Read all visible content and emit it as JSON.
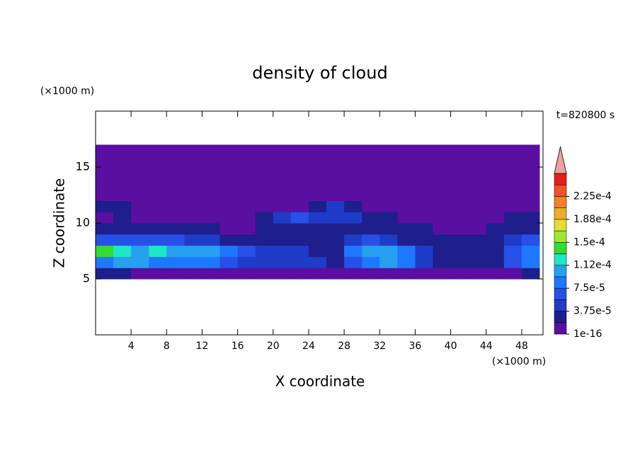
{
  "chart_data": {
    "type": "contour",
    "title": "density of cloud",
    "xlabel": "X coordinate",
    "ylabel": "Z coordinate",
    "x_unit": "(×1000 m)",
    "y_unit": "(×1000 m)",
    "time_label": "t=820800 s",
    "xlim": [
      0,
      50.4
    ],
    "ylim": [
      0,
      20
    ],
    "xticks": [
      4,
      8,
      12,
      16,
      20,
      24,
      28,
      32,
      36,
      40,
      44,
      48
    ],
    "yticks": [
      5,
      10,
      15
    ],
    "x": [
      1,
      3,
      5,
      7,
      9,
      11,
      13,
      15,
      17,
      19,
      21,
      23,
      25,
      27,
      29,
      31,
      33,
      35,
      37,
      39,
      41,
      43,
      45,
      47,
      49
    ],
    "y": [
      0.5,
      1.5,
      2.5,
      3.5,
      4.5,
      5.5,
      6.5,
      7.5,
      8.5,
      9.5,
      10.5,
      11.5,
      12.5,
      13.5,
      14.5,
      15.5,
      16.5,
      17.5,
      18.5,
      19.5
    ],
    "z": [
      [
        0,
        0,
        0,
        0,
        0,
        0,
        0,
        0,
        0,
        0,
        0,
        0,
        0,
        0,
        0,
        0,
        0,
        0,
        0,
        0,
        0,
        0,
        0,
        0,
        0
      ],
      [
        0,
        0,
        0,
        0,
        0,
        0,
        0,
        0,
        0,
        0,
        0,
        0,
        0,
        0,
        0,
        0,
        0,
        0,
        0,
        0,
        0,
        0,
        0,
        0,
        0
      ],
      [
        0,
        0,
        0,
        0,
        0,
        0,
        0,
        0,
        0,
        0,
        0,
        0,
        0,
        0,
        0,
        0,
        0,
        0,
        0,
        0,
        0,
        0,
        0,
        0,
        0
      ],
      [
        0,
        0,
        0,
        0,
        0,
        0,
        0,
        0,
        0,
        0,
        0,
        0,
        0,
        0,
        0,
        0,
        0,
        0,
        0,
        0,
        0,
        0,
        0,
        0,
        0
      ],
      [
        0,
        0,
        0,
        0,
        0,
        0,
        0,
        0,
        0,
        0,
        0,
        0,
        0,
        0,
        0,
        0,
        0,
        0,
        0,
        0,
        0,
        0,
        0,
        0,
        0
      ],
      [
        2e-05,
        2e-05,
        1e-05,
        1e-05,
        1e-05,
        1e-05,
        5e-06,
        5e-06,
        5e-06,
        5e-06,
        1e-05,
        5e-06,
        5e-06,
        5e-06,
        5e-06,
        5e-06,
        5e-06,
        5e-06,
        5e-06,
        5e-06,
        5e-06,
        5e-06,
        5e-06,
        5e-06,
        2e-05
      ],
      [
        9e-05,
        0.0001,
        0.0001,
        9e-05,
        9e-05,
        8e-05,
        8e-05,
        6e-05,
        4e-05,
        5e-05,
        4e-05,
        5e-05,
        4e-05,
        3e-05,
        6e-05,
        9e-05,
        0.0001,
        8e-05,
        4e-05,
        3e-05,
        3e-05,
        2e-05,
        2e-05,
        7e-05,
        9e-05
      ],
      [
        0.00014,
        0.00013,
        0.00011,
        0.00012,
        0.00011,
        0.00011,
        0.0001,
        8e-05,
        6e-05,
        4e-05,
        5e-05,
        4e-05,
        3e-05,
        3e-05,
        8e-05,
        0.00011,
        0.00011,
        9e-05,
        4e-05,
        2e-05,
        2e-05,
        2e-05,
        2e-05,
        6e-05,
        8e-05
      ],
      [
        6e-05,
        7e-05,
        7e-05,
        6e-05,
        7e-05,
        5e-05,
        4e-05,
        3e-05,
        2e-05,
        2e-05,
        2e-05,
        2e-05,
        2e-05,
        3e-05,
        5e-05,
        6e-05,
        5e-05,
        3e-05,
        2e-05,
        2e-05,
        2e-05,
        2e-05,
        2e-05,
        4e-05,
        6e-05
      ],
      [
        2e-05,
        2e-05,
        2e-05,
        2e-05,
        2e-05,
        2e-05,
        2e-05,
        1.5e-05,
        1.5e-05,
        2e-05,
        3e-05,
        3e-05,
        3e-05,
        2e-05,
        2e-05,
        2e-05,
        2e-05,
        2e-05,
        2e-05,
        1.5e-05,
        1.5e-05,
        1.5e-05,
        2e-05,
        3e-05,
        3e-05
      ],
      [
        1e-05,
        2e-05,
        1e-05,
        1e-05,
        1e-05,
        1e-05,
        1e-05,
        1e-05,
        1e-05,
        2e-05,
        5e-05,
        6e-05,
        5e-05,
        5e-05,
        4e-05,
        2e-05,
        2e-05,
        1e-05,
        1e-05,
        1e-05,
        1e-05,
        1e-05,
        1e-05,
        2e-05,
        2e-05
      ],
      [
        2e-05,
        2e-05,
        5e-06,
        5e-06,
        5e-06,
        5e-06,
        5e-06,
        5e-06,
        5e-06,
        5e-06,
        5e-06,
        1e-05,
        3e-05,
        4e-05,
        2e-05,
        5e-06,
        5e-06,
        5e-06,
        5e-06,
        5e-06,
        5e-06,
        5e-06,
        5e-06,
        5e-06,
        5e-06
      ],
      [
        5e-06,
        5e-06,
        5e-06,
        5e-06,
        5e-06,
        5e-06,
        5e-06,
        5e-06,
        5e-06,
        5e-06,
        5e-06,
        5e-06,
        5e-06,
        5e-06,
        5e-06,
        5e-06,
        5e-06,
        5e-06,
        5e-06,
        5e-06,
        5e-06,
        5e-06,
        5e-06,
        5e-06,
        5e-06
      ],
      [
        5e-06,
        5e-06,
        5e-06,
        5e-06,
        5e-06,
        5e-06,
        5e-06,
        5e-06,
        5e-06,
        5e-06,
        5e-06,
        5e-06,
        5e-06,
        5e-06,
        5e-06,
        5e-06,
        5e-06,
        5e-06,
        5e-06,
        5e-06,
        5e-06,
        5e-06,
        5e-06,
        5e-06,
        5e-06
      ],
      [
        5e-06,
        5e-06,
        5e-06,
        5e-06,
        5e-06,
        5e-06,
        5e-06,
        5e-06,
        5e-06,
        5e-06,
        5e-06,
        5e-06,
        5e-06,
        5e-06,
        5e-06,
        5e-06,
        5e-06,
        5e-06,
        5e-06,
        5e-06,
        5e-06,
        5e-06,
        5e-06,
        5e-06,
        5e-06
      ],
      [
        5e-06,
        5e-06,
        5e-06,
        5e-06,
        5e-06,
        5e-06,
        5e-06,
        5e-06,
        5e-06,
        5e-06,
        5e-06,
        5e-06,
        5e-06,
        5e-06,
        5e-06,
        5e-06,
        5e-06,
        5e-06,
        5e-06,
        5e-06,
        5e-06,
        5e-06,
        5e-06,
        5e-06,
        5e-06
      ],
      [
        5e-06,
        5e-06,
        5e-06,
        5e-06,
        5e-06,
        5e-06,
        5e-06,
        5e-06,
        5e-06,
        5e-06,
        5e-06,
        5e-06,
        5e-06,
        5e-06,
        5e-06,
        5e-06,
        5e-06,
        5e-06,
        5e-06,
        5e-06,
        5e-06,
        5e-06,
        5e-06,
        5e-06,
        5e-06
      ],
      [
        0,
        0,
        0,
        0,
        0,
        0,
        0,
        0,
        0,
        0,
        0,
        0,
        0,
        0,
        0,
        0,
        0,
        0,
        0,
        0,
        0,
        0,
        0,
        0,
        0
      ],
      [
        0,
        0,
        0,
        0,
        0,
        0,
        0,
        0,
        0,
        0,
        0,
        0,
        0,
        0,
        0,
        0,
        0,
        0,
        0,
        0,
        0,
        0,
        0,
        0,
        0
      ],
      [
        0,
        0,
        0,
        0,
        0,
        0,
        0,
        0,
        0,
        0,
        0,
        0,
        0,
        0,
        0,
        0,
        0,
        0,
        0,
        0,
        0,
        0,
        0,
        0,
        0
      ]
    ],
    "levels": [
      1e-16,
      1.875e-05,
      3.75e-05,
      5.625e-05,
      7.5e-05,
      9.375e-05,
      0.0001125,
      0.00013125,
      0.00015,
      0.00016875,
      0.0001875,
      0.00020625,
      0.000225,
      0.00024375
    ],
    "colors": [
      "#5a0fa0",
      "#1e1e8c",
      "#1e3cc8",
      "#2850e6",
      "#1e78ff",
      "#28a0f0",
      "#1ee6c8",
      "#32dc32",
      "#a0e632",
      "#e6dc32",
      "#e6af2d",
      "#f08228",
      "#f05028",
      "#e61e1e"
    ],
    "overflow_color": "#f0a0a0",
    "colorbar_lim": [
      0,
      0.0002625
    ],
    "colorbar_ticks": [
      {
        "value": 1e-16,
        "label": "1e-16"
      },
      {
        "value": 3.75e-05,
        "label": "3.75e-5"
      },
      {
        "value": 7.5e-05,
        "label": "7.5e-5"
      },
      {
        "value": 0.0001125,
        "label": "1.12e-4"
      },
      {
        "value": 0.00015,
        "label": "1.5e-4"
      },
      {
        "value": 0.0001875,
        "label": "1.88e-4"
      },
      {
        "value": 0.000225,
        "label": "2.25e-4"
      }
    ]
  }
}
